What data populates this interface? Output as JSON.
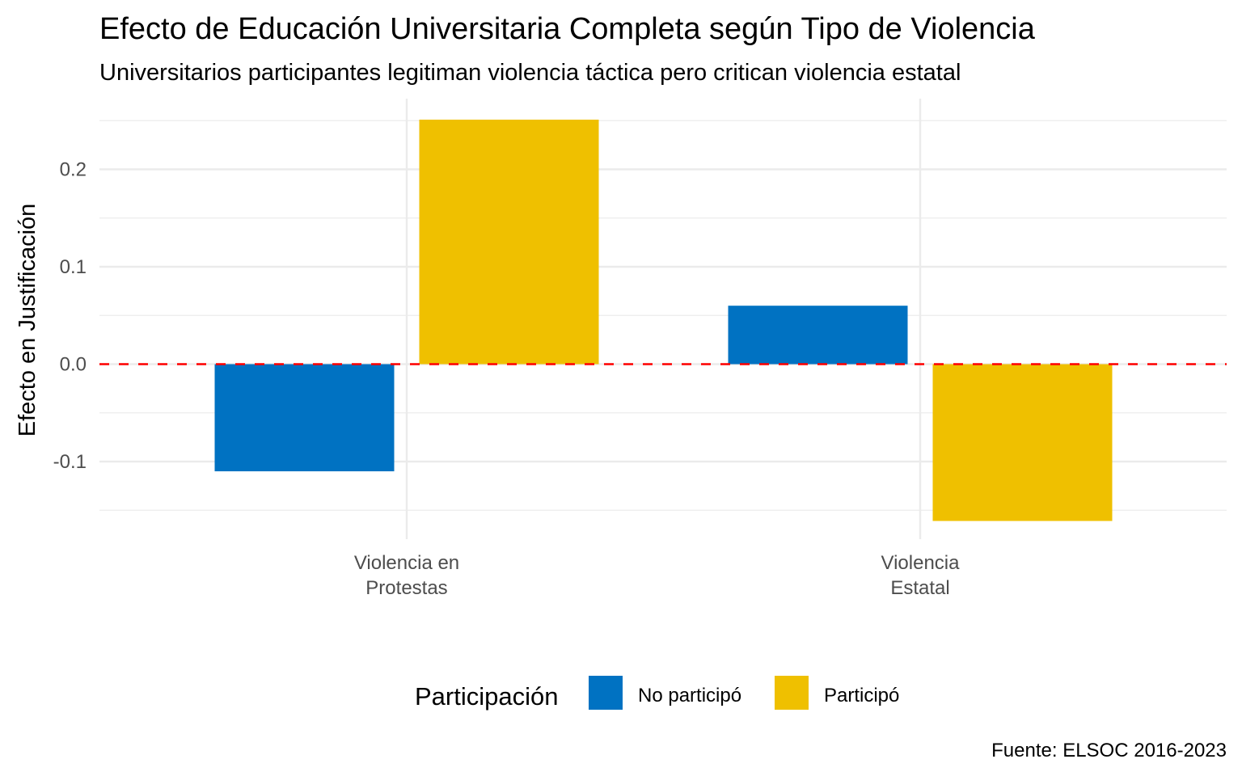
{
  "chart_data": {
    "type": "bar",
    "title": "Efecto de Educación Universitaria Completa según Tipo de Violencia",
    "subtitle": "Universitarios participantes legitiman violencia táctica pero critican violencia estatal",
    "xlabel": "",
    "ylabel": "Efecto en Justificación",
    "categories": [
      {
        "lines": [
          "Violencia en",
          "Protestas"
        ]
      },
      {
        "lines": [
          "Violencia",
          "Estatal"
        ]
      }
    ],
    "series": [
      {
        "name": "No participó",
        "color": "#0072C2",
        "values": [
          -0.11,
          0.06
        ]
      },
      {
        "name": "Participó",
        "color": "#EFC000",
        "values": [
          0.251,
          -0.161
        ]
      }
    ],
    "ylim": [
      -0.175,
      0.27
    ],
    "yticks": [
      -0.1,
      0.0,
      0.1,
      0.2
    ],
    "ytick_labels": [
      "-0.1",
      "0.0",
      "0.1",
      "0.2"
    ],
    "reference_line": {
      "y": 0,
      "color": "#FF0000",
      "style": "dashed"
    },
    "grid": true,
    "legend": {
      "title": "Participación",
      "position": "bottom"
    },
    "caption": "Fuente: ELSOC 2016-2023"
  }
}
